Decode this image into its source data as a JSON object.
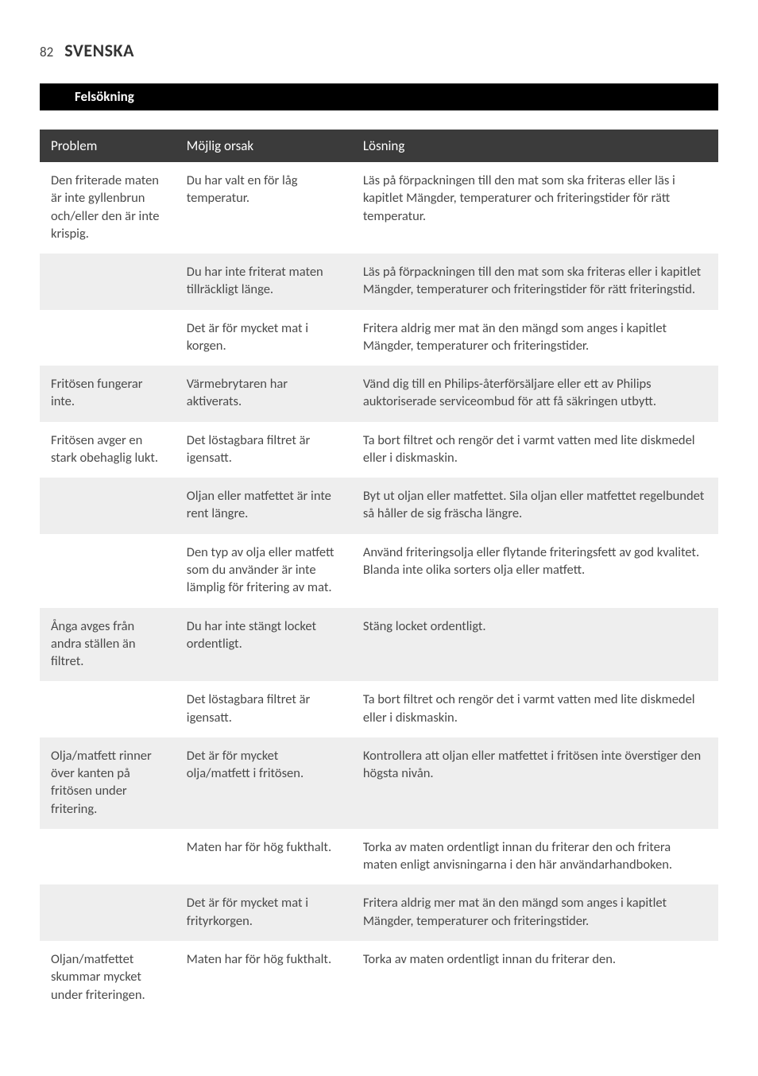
{
  "page": {
    "number": "82",
    "title": "SVENSKA"
  },
  "section": {
    "heading": "Felsökning"
  },
  "table": {
    "headers": {
      "problem": "Problem",
      "cause": "Möjlig orsak",
      "solution": "Lösning"
    },
    "rows": [
      {
        "shaded": false,
        "problem": "Den friterade maten är inte gyllenbrun och/eller den är inte krispig.",
        "cause": "Du har valt en för låg temperatur.",
        "solution": "Läs på förpackningen till den mat som ska friteras eller läs i kapitlet Mängder, temperaturer och friteringstider för rätt temperatur."
      },
      {
        "shaded": true,
        "problem": "",
        "cause": "Du har inte friterat maten tillräckligt länge.",
        "solution": "Läs på förpackningen till den mat som ska friteras eller i kapitlet Mängder, temperaturer och friteringstider för rätt friteringstid."
      },
      {
        "shaded": false,
        "problem": "",
        "cause": "Det är för mycket mat i korgen.",
        "solution": "Fritera aldrig mer mat än den mängd som anges i kapitlet Mängder, temperaturer och friteringstider."
      },
      {
        "shaded": true,
        "problem": "Fritösen fungerar inte.",
        "cause": "Värmebrytaren har aktiverats.",
        "solution": "Vänd dig till en Philips-återförsäljare eller ett av Philips auktoriserade serviceombud för att få säkringen utbytt."
      },
      {
        "shaded": false,
        "problem": "Fritösen avger en stark obehaglig lukt.",
        "cause": "Det löstagbara filtret är igensatt.",
        "solution": "Ta bort filtret och rengör det i varmt vatten med lite diskmedel eller i diskmaskin."
      },
      {
        "shaded": true,
        "problem": "",
        "cause": "Oljan eller matfettet är inte rent längre.",
        "solution": "Byt ut oljan eller matfettet. Sila oljan eller matfettet regelbundet så håller de sig fräscha längre."
      },
      {
        "shaded": false,
        "problem": "",
        "cause": "Den typ av olja eller matfett som du använder är inte lämplig för fritering av mat.",
        "solution": "Använd friteringsolja eller flytande friteringsfett av god kvalitet. Blanda inte olika sorters olja eller matfett."
      },
      {
        "shaded": true,
        "problem": "Ånga avges från andra ställen än filtret.",
        "cause": "Du har inte stängt locket ordentligt.",
        "solution": "Stäng locket ordentligt."
      },
      {
        "shaded": false,
        "problem": "",
        "cause": "Det löstagbara filtret är igensatt.",
        "solution": "Ta bort filtret och rengör det i varmt vatten med lite diskmedel eller i diskmaskin."
      },
      {
        "shaded": true,
        "problem": "Olja/matfett rinner över kanten på fritösen under fritering.",
        "cause": "Det är för mycket olja/matfett i fritösen.",
        "solution": "Kontrollera att oljan eller matfettet i fritösen inte överstiger den högsta nivån."
      },
      {
        "shaded": false,
        "problem": "",
        "cause": "Maten har för hög fukthalt.",
        "solution": "Torka av maten ordentligt innan du friterar den och fritera maten enligt anvisningarna i den här användarhandboken."
      },
      {
        "shaded": true,
        "problem": "",
        "cause": "Det är för mycket mat i frityrkorgen.",
        "solution": "Fritera aldrig mer mat än den mängd som anges i kapitlet Mängder, temperaturer och friteringstider."
      },
      {
        "shaded": false,
        "problem": "Oljan/matfettet skummar mycket under friteringen.",
        "cause": "Maten har för hög fukthalt.",
        "solution": "Torka av maten ordentligt innan du friterar den."
      }
    ]
  }
}
